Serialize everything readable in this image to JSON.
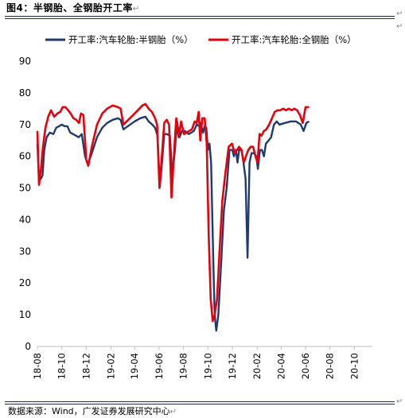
{
  "figure_title": "图4：半钢胎、全钢胎开工率",
  "source_text": "数据来源：Wind，广发证券发展研究中心",
  "mark_symbol": "↵",
  "colors": {
    "semi": "#1f3a6e",
    "full": "#e8000b",
    "rule": "#1f2d4f"
  },
  "chart_data": {
    "type": "line",
    "title": "",
    "xlabel": "",
    "ylabel": "",
    "ylim": [
      0,
      90
    ],
    "yticks": [
      0,
      10,
      20,
      30,
      40,
      50,
      60,
      70,
      80,
      90
    ],
    "xlim": [
      "2018-08-01",
      "2020-11-15"
    ],
    "xticks": [
      {
        "date": "2018-08-01",
        "label": "18-08"
      },
      {
        "date": "2018-10-01",
        "label": "18-10"
      },
      {
        "date": "2018-12-01",
        "label": "18-12"
      },
      {
        "date": "2019-02-01",
        "label": "19-02"
      },
      {
        "date": "2019-04-01",
        "label": "19-04"
      },
      {
        "date": "2019-06-01",
        "label": "19-06"
      },
      {
        "date": "2019-08-01",
        "label": "19-08"
      },
      {
        "date": "2019-10-01",
        "label": "19-10"
      },
      {
        "date": "2019-12-01",
        "label": "19-12"
      },
      {
        "date": "2020-02-01",
        "label": "20-02"
      },
      {
        "date": "2020-04-01",
        "label": "20-04"
      },
      {
        "date": "2020-06-01",
        "label": "20-06"
      },
      {
        "date": "2020-08-01",
        "label": "20-08"
      },
      {
        "date": "2020-10-01",
        "label": "20-10"
      }
    ],
    "grid": false,
    "legend": "top",
    "series": [
      {
        "name": "开工率:汽车轮胎:半钢胎（%）",
        "points": [
          [
            "2018-08-01",
            64
          ],
          [
            "2018-08-05",
            52.5
          ],
          [
            "2018-08-10",
            53
          ],
          [
            "2018-08-14",
            54
          ],
          [
            "2018-08-18",
            62
          ],
          [
            "2018-08-24",
            66
          ],
          [
            "2018-09-01",
            67.5
          ],
          [
            "2018-09-10",
            67
          ],
          [
            "2018-09-17",
            69
          ],
          [
            "2018-09-24",
            69.5
          ],
          [
            "2018-10-01",
            70
          ],
          [
            "2018-10-08",
            69.5
          ],
          [
            "2018-10-15",
            69.5
          ],
          [
            "2018-10-22",
            67.5
          ],
          [
            "2018-10-29",
            67
          ],
          [
            "2018-11-05",
            66.5
          ],
          [
            "2018-11-12",
            66
          ],
          [
            "2018-11-20",
            67
          ],
          [
            "2018-11-28",
            60
          ],
          [
            "2018-12-05",
            57.5
          ],
          [
            "2018-12-15",
            61
          ],
          [
            "2018-12-28",
            66
          ],
          [
            "2019-01-10",
            69
          ],
          [
            "2019-01-22",
            70.5
          ],
          [
            "2019-02-05",
            71.5
          ],
          [
            "2019-02-18",
            72
          ],
          [
            "2019-02-25",
            71.5
          ],
          [
            "2019-03-04",
            68.5
          ],
          [
            "2019-03-15",
            69.5
          ],
          [
            "2019-04-01",
            71
          ],
          [
            "2019-04-15",
            72
          ],
          [
            "2019-04-28",
            72.5
          ],
          [
            "2019-05-06",
            71
          ],
          [
            "2019-05-15",
            70
          ],
          [
            "2019-05-22",
            69
          ],
          [
            "2019-05-28",
            66.5
          ],
          [
            "2019-06-03",
            50.5
          ],
          [
            "2019-06-09",
            59
          ],
          [
            "2019-06-14",
            67
          ],
          [
            "2019-06-20",
            67
          ],
          [
            "2019-06-28",
            66.5
          ],
          [
            "2019-07-04",
            54
          ],
          [
            "2019-07-10",
            61
          ],
          [
            "2019-07-16",
            71
          ],
          [
            "2019-07-22",
            66
          ],
          [
            "2019-07-28",
            68
          ],
          [
            "2019-08-05",
            68
          ],
          [
            "2019-08-14",
            67
          ],
          [
            "2019-08-21",
            67.5
          ],
          [
            "2019-08-27",
            68
          ],
          [
            "2019-09-03",
            70
          ],
          [
            "2019-09-09",
            69.5
          ],
          [
            "2019-09-13",
            70.5
          ],
          [
            "2019-09-19",
            67.5
          ],
          [
            "2019-09-23",
            69.5
          ],
          [
            "2019-09-27",
            69
          ],
          [
            "2019-10-01",
            62
          ],
          [
            "2019-10-05",
            64
          ],
          [
            "2019-10-09",
            58
          ],
          [
            "2019-10-14",
            30
          ],
          [
            "2019-10-18",
            10
          ],
          [
            "2019-10-22",
            5
          ],
          [
            "2019-10-27",
            10
          ],
          [
            "2019-11-03",
            26
          ],
          [
            "2019-11-10",
            43
          ],
          [
            "2019-11-17",
            50
          ],
          [
            "2019-11-24",
            62
          ],
          [
            "2019-12-01",
            62
          ],
          [
            "2019-12-05",
            60
          ],
          [
            "2019-12-10",
            62
          ],
          [
            "2019-12-14",
            58
          ],
          [
            "2019-12-18",
            62
          ],
          [
            "2019-12-24",
            62
          ],
          [
            "2019-12-29",
            58
          ],
          [
            "2020-01-03",
            53
          ],
          [
            "2020-01-08",
            28
          ],
          [
            "2020-01-13",
            58
          ],
          [
            "2020-01-18",
            61
          ],
          [
            "2020-01-24",
            61
          ],
          [
            "2020-01-30",
            60
          ],
          [
            "2020-02-03",
            56
          ],
          [
            "2020-02-08",
            62
          ],
          [
            "2020-02-13",
            62
          ],
          [
            "2020-02-18",
            60
          ],
          [
            "2020-02-23",
            64
          ],
          [
            "2020-03-01",
            65
          ],
          [
            "2020-03-07",
            66
          ],
          [
            "2020-03-14",
            70
          ],
          [
            "2020-03-21",
            71
          ],
          [
            "2020-03-28",
            70
          ],
          [
            "2020-04-10",
            70.5
          ],
          [
            "2020-04-25",
            71
          ],
          [
            "2020-05-08",
            71
          ],
          [
            "2020-05-20",
            70
          ],
          [
            "2020-05-27",
            68
          ],
          [
            "2020-06-03",
            70.5
          ],
          [
            "2020-06-10",
            71
          ]
        ]
      },
      {
        "name": "开工率:汽车轮胎:全钢胎（%）",
        "points": [
          [
            "2018-08-01",
            68
          ],
          [
            "2018-08-05",
            51
          ],
          [
            "2018-08-10",
            56
          ],
          [
            "2018-08-15",
            63
          ],
          [
            "2018-08-21",
            69
          ],
          [
            "2018-08-28",
            72.5
          ],
          [
            "2018-09-04",
            74.5
          ],
          [
            "2018-09-12",
            72.5
          ],
          [
            "2018-09-20",
            73.5
          ],
          [
            "2018-09-27",
            74
          ],
          [
            "2018-10-03",
            75.5
          ],
          [
            "2018-10-10",
            75.5
          ],
          [
            "2018-10-17",
            74.5
          ],
          [
            "2018-10-23",
            73.5
          ],
          [
            "2018-10-30",
            72
          ],
          [
            "2018-11-06",
            71.5
          ],
          [
            "2018-11-13",
            70.5
          ],
          [
            "2018-11-18",
            73.5
          ],
          [
            "2018-11-24",
            73
          ],
          [
            "2018-12-01",
            59
          ],
          [
            "2018-12-06",
            57
          ],
          [
            "2018-12-15",
            63
          ],
          [
            "2018-12-28",
            70
          ],
          [
            "2019-01-10",
            73.5
          ],
          [
            "2019-01-22",
            75
          ],
          [
            "2019-02-05",
            76
          ],
          [
            "2019-02-18",
            75.5
          ],
          [
            "2019-02-25",
            75
          ],
          [
            "2019-03-04",
            70
          ],
          [
            "2019-03-20",
            72
          ],
          [
            "2019-04-05",
            74
          ],
          [
            "2019-04-20",
            76
          ],
          [
            "2019-04-28",
            76.5
          ],
          [
            "2019-05-06",
            75
          ],
          [
            "2019-05-14",
            74
          ],
          [
            "2019-05-22",
            72
          ],
          [
            "2019-05-27",
            70
          ],
          [
            "2019-06-02",
            50
          ],
          [
            "2019-06-08",
            60
          ],
          [
            "2019-06-14",
            70.5
          ],
          [
            "2019-06-20",
            71.5
          ],
          [
            "2019-06-26",
            70
          ],
          [
            "2019-07-02",
            47
          ],
          [
            "2019-07-08",
            60
          ],
          [
            "2019-07-14",
            72
          ],
          [
            "2019-07-20",
            66
          ],
          [
            "2019-07-26",
            71
          ],
          [
            "2019-08-02",
            67
          ],
          [
            "2019-08-09",
            67.5
          ],
          [
            "2019-08-15",
            68
          ],
          [
            "2019-08-22",
            68.5
          ],
          [
            "2019-08-29",
            71
          ],
          [
            "2019-09-03",
            70.5
          ],
          [
            "2019-09-08",
            74
          ],
          [
            "2019-09-12",
            65
          ],
          [
            "2019-09-17",
            72
          ],
          [
            "2019-09-23",
            72
          ],
          [
            "2019-09-28",
            64
          ],
          [
            "2019-10-03",
            35
          ],
          [
            "2019-10-08",
            15
          ],
          [
            "2019-10-13",
            8
          ],
          [
            "2019-10-18",
            10
          ],
          [
            "2019-10-24",
            15
          ],
          [
            "2019-10-30",
            30
          ],
          [
            "2019-11-06",
            46
          ],
          [
            "2019-11-14",
            55
          ],
          [
            "2019-11-22",
            63
          ],
          [
            "2019-11-30",
            64
          ],
          [
            "2019-12-07",
            61
          ],
          [
            "2019-12-13",
            62
          ],
          [
            "2019-12-18",
            63
          ],
          [
            "2019-12-24",
            62
          ],
          [
            "2019-12-30",
            58
          ],
          [
            "2020-01-04",
            60
          ],
          [
            "2020-01-10",
            62
          ],
          [
            "2020-01-16",
            63
          ],
          [
            "2020-01-22",
            63
          ],
          [
            "2020-01-28",
            60
          ],
          [
            "2020-02-02",
            58
          ],
          [
            "2020-02-07",
            67
          ],
          [
            "2020-02-12",
            66.5
          ],
          [
            "2020-02-18",
            68
          ],
          [
            "2020-02-24",
            68.5
          ],
          [
            "2020-03-02",
            70
          ],
          [
            "2020-03-09",
            72
          ],
          [
            "2020-03-16",
            74
          ],
          [
            "2020-03-23",
            74.5
          ],
          [
            "2020-03-30",
            74.5
          ],
          [
            "2020-04-06",
            75
          ],
          [
            "2020-04-13",
            74.5
          ],
          [
            "2020-04-20",
            75
          ],
          [
            "2020-04-27",
            74.5
          ],
          [
            "2020-05-04",
            75
          ],
          [
            "2020-05-11",
            74.5
          ],
          [
            "2020-05-18",
            73
          ],
          [
            "2020-05-25",
            70.5
          ],
          [
            "2020-06-01",
            75.5
          ],
          [
            "2020-06-10",
            75.5
          ]
        ]
      }
    ]
  }
}
